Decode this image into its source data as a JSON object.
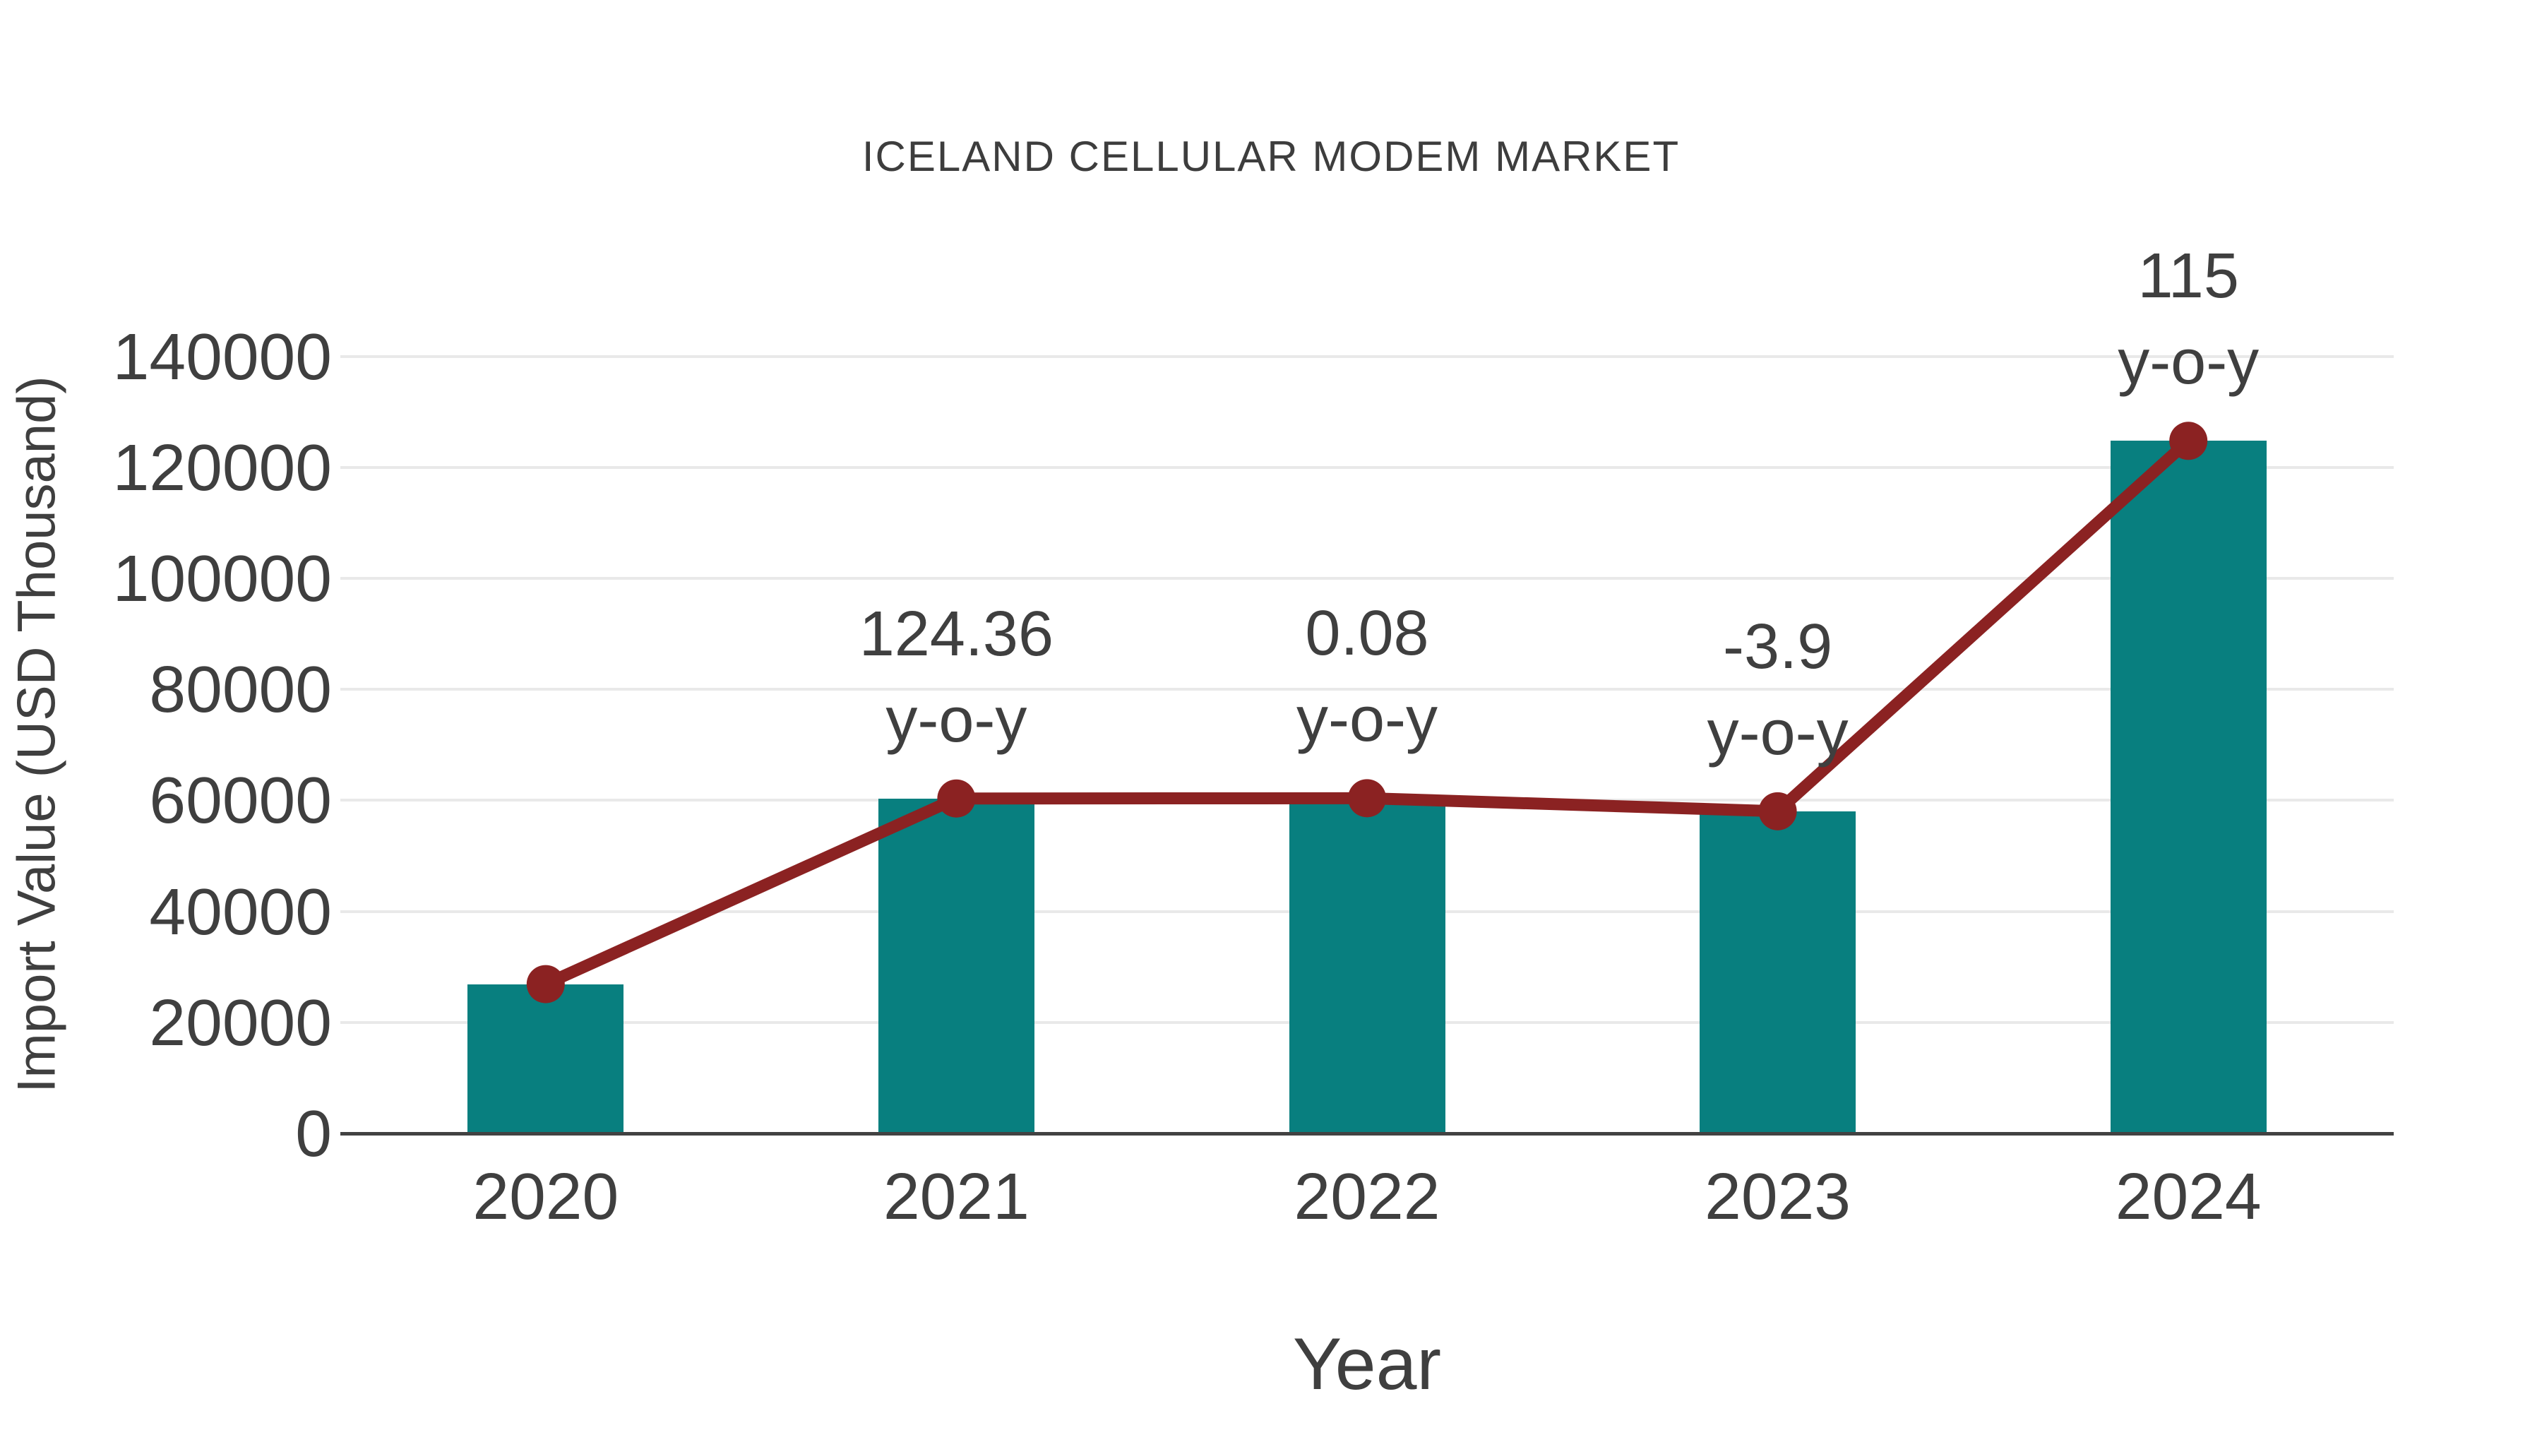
{
  "title": "ICELAND CELLULAR MODEM MARKET",
  "chart_data": {
    "type": "bar",
    "title": "ICELAND CELLULAR MODEM MARKET",
    "xlabel": "Year",
    "ylabel": "Import Value (USD Thousand)",
    "categories": [
      "2020",
      "2021",
      "2022",
      "2023",
      "2024"
    ],
    "series": [
      {
        "name": "Import Value (USD Thousand)",
        "type": "bar",
        "values": [
          26900,
          60350,
          60400,
          58050,
          124800
        ]
      },
      {
        "name": "y-o-y trend line",
        "type": "line",
        "values": [
          26900,
          60350,
          60400,
          58050,
          124800
        ]
      }
    ],
    "annotations": [
      {
        "category": "2021",
        "value_label": "124.36",
        "suffix_label": "y-o-y"
      },
      {
        "category": "2022",
        "value_label": "0.08",
        "suffix_label": "y-o-y"
      },
      {
        "category": "2023",
        "value_label": "-3.9",
        "suffix_label": "y-o-y"
      },
      {
        "category": "2024",
        "value_label": "115",
        "suffix_label": "y-o-y"
      }
    ],
    "yticks": [
      0,
      20000,
      40000,
      60000,
      80000,
      100000,
      120000,
      140000
    ],
    "ylim": [
      0,
      140000
    ],
    "grid": "horizontal",
    "legend_position": "none",
    "colors": {
      "bar": "#087f7f",
      "line": "#8b2222",
      "marker": "#8b2222",
      "text": "#3f3f3f",
      "grid": "#e9e9e9",
      "axis": "#424242",
      "background": "#ffffff"
    }
  }
}
